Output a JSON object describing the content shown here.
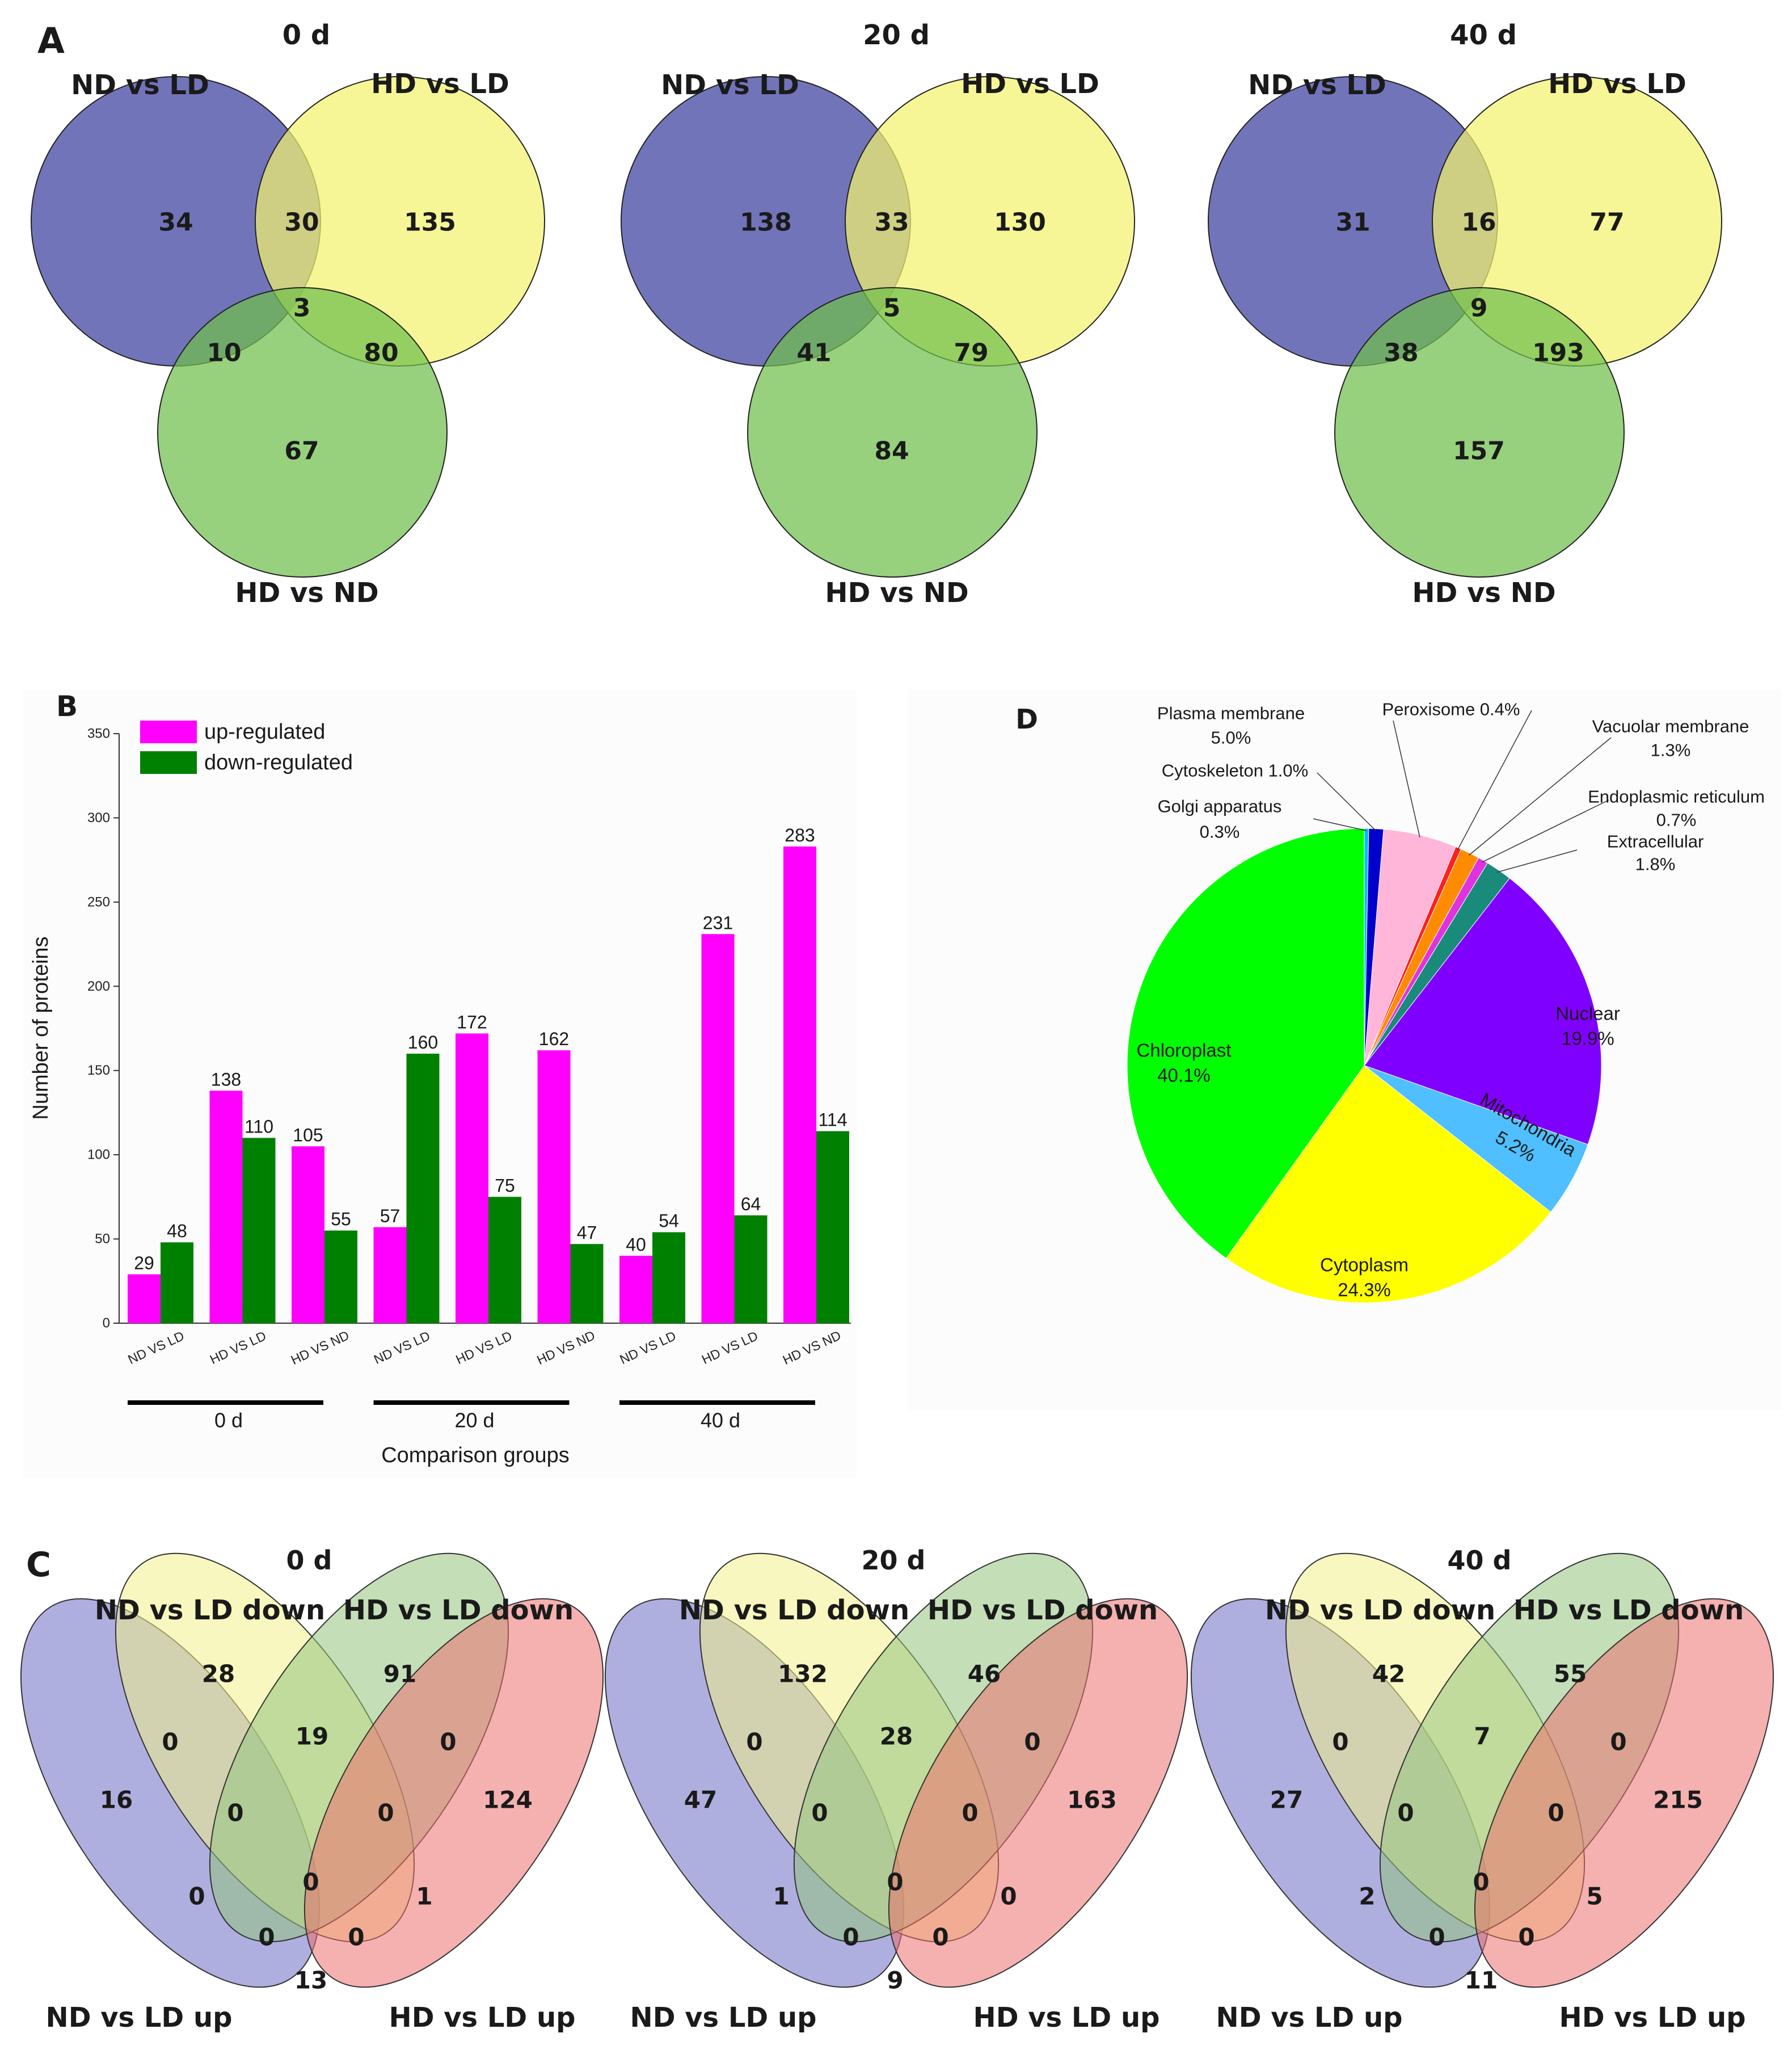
{
  "panel_labels": {
    "a": "A",
    "b": "B",
    "c": "C",
    "d": "D"
  },
  "chart_data": [
    {
      "id": "A",
      "type": "venn3",
      "panels": [
        {
          "title": "0 d",
          "set_labels": [
            "ND vs LD",
            "HD vs LD",
            "HD vs ND"
          ],
          "regions": {
            "only1": "34",
            "only2": "135",
            "only3": "67",
            "s12": "30",
            "s13": "10",
            "s23": "80",
            "s123": "3"
          }
        },
        {
          "title": "20 d",
          "set_labels": [
            "ND vs LD",
            "HD vs LD",
            "HD vs ND"
          ],
          "regions": {
            "only1": "138",
            "only2": "130",
            "only3": "84",
            "s12": "33",
            "s13": "41",
            "s23": "79",
            "s123": "5"
          }
        },
        {
          "title": "40 d",
          "set_labels": [
            "ND vs LD",
            "HD vs LD",
            "HD vs ND"
          ],
          "regions": {
            "only1": "31",
            "only2": "77",
            "only3": "157",
            "s12": "16",
            "s13": "38",
            "s23": "193",
            "s123": "9"
          }
        }
      ],
      "colors": {
        "set1": "#4a4da6",
        "set2": "#f2f26e",
        "set3": "#6fbf4c"
      }
    },
    {
      "id": "B",
      "type": "bar",
      "ylabel": "Number of proteins",
      "xlabel": "Comparison groups",
      "ylim": [
        0,
        350
      ],
      "yticks": [
        "0",
        "50",
        "100",
        "150",
        "200",
        "250",
        "300",
        "350"
      ],
      "categories": [
        "ND VS LD",
        "HD VS LD",
        "HD VS ND",
        "ND VS LD",
        "HD VS LD",
        "HD VS ND",
        "ND VS LD",
        "HD VS LD",
        "HD VS ND"
      ],
      "groups": [
        "0 d",
        "20 d",
        "40 d"
      ],
      "series": [
        {
          "name": "up-regulated",
          "color": "#ff00ff",
          "values": [
            29,
            138,
            105,
            57,
            172,
            162,
            40,
            231,
            283
          ]
        },
        {
          "name": "down-regulated",
          "color": "#008000",
          "values": [
            48,
            110,
            55,
            160,
            75,
            47,
            54,
            64,
            114
          ]
        }
      ],
      "legend_position": "top-left"
    },
    {
      "id": "C",
      "type": "venn4",
      "panels": [
        {
          "title": "0 d",
          "set_labels": [
            "ND vs LD down",
            "HD vs LD down",
            "ND vs LD up",
            "HD vs LD up"
          ],
          "regions": {
            "a": "16",
            "b": "28",
            "c": "91",
            "d": "124",
            "ab": "0",
            "bc": "19",
            "cd": "0",
            "abc": "0",
            "bcd": "0",
            "abcd": "0",
            "ac": "0",
            "bd": "1",
            "acd": "0",
            "abd": "0",
            "ad": "13"
          }
        },
        {
          "title": "20 d",
          "set_labels": [
            "ND vs LD down",
            "HD vs LD down",
            "ND vs LD up",
            "HD vs LD up"
          ],
          "regions": {
            "a": "47",
            "b": "132",
            "c": "46",
            "d": "163",
            "ab": "0",
            "bc": "28",
            "cd": "0",
            "abc": "0",
            "bcd": "0",
            "abcd": "0",
            "ac": "1",
            "bd": "0",
            "acd": "0",
            "abd": "0",
            "ad": "9"
          }
        },
        {
          "title": "40 d",
          "set_labels": [
            "ND vs LD down",
            "HD vs LD down",
            "ND vs LD up",
            "HD vs LD up"
          ],
          "regions": {
            "a": "27",
            "b": "42",
            "c": "55",
            "d": "215",
            "ab": "0",
            "bc": "7",
            "cd": "0",
            "abc": "0",
            "bcd": "0",
            "abcd": "0",
            "ac": "2",
            "bd": "5",
            "acd": "0",
            "abd": "0",
            "ad": "11"
          }
        }
      ],
      "colors": [
        "#6b6bc4",
        "#f0f08a",
        "#93c47d",
        "#ec6f6f"
      ]
    },
    {
      "id": "D",
      "type": "pie",
      "slices": [
        {
          "label": "Golgi apparatus",
          "value": 0.3,
          "pct": "0.3%",
          "color": "#00bfff"
        },
        {
          "label": "Cytoskeleton",
          "value": 1.0,
          "pct": "1.0%",
          "color": "#0000cd"
        },
        {
          "label": "Plasma membrane",
          "value": 5.0,
          "pct": "5.0%",
          "color": "#ffb6d9"
        },
        {
          "label": "Peroxisome",
          "value": 0.4,
          "pct": "0.4%",
          "color": "#ff2020"
        },
        {
          "label": "Vacuolar membrane",
          "value": 1.3,
          "pct": "1.3%",
          "color": "#ff8c00"
        },
        {
          "label": "Endoplasmic reticulum",
          "value": 0.7,
          "pct": "0.7%",
          "color": "#e033e0"
        },
        {
          "label": "Extracellular",
          "value": 1.8,
          "pct": "1.8%",
          "color": "#1a8a7a"
        },
        {
          "label": "Nuclear",
          "value": 19.9,
          "pct": "19.9%",
          "color": "#8000ff"
        },
        {
          "label": "Mitochondria",
          "value": 5.2,
          "pct": "5.2%",
          "color": "#4fbfff"
        },
        {
          "label": "Cytoplasm",
          "value": 24.3,
          "pct": "24.3%",
          "color": "#ffff00"
        },
        {
          "label": "Chloroplast",
          "value": 40.1,
          "pct": "40.1%",
          "color": "#00ff00"
        }
      ]
    }
  ]
}
